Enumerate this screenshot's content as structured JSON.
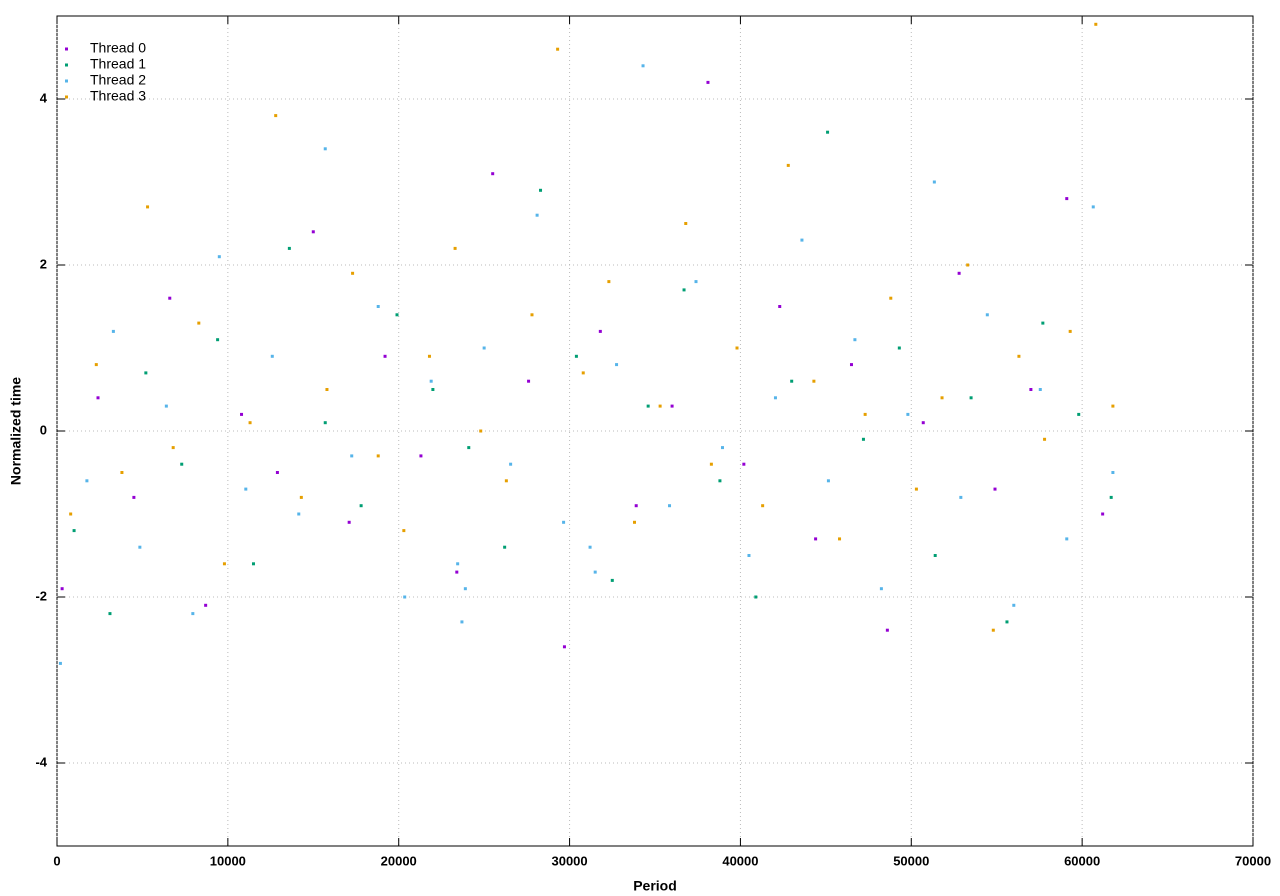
{
  "chart_data": {
    "type": "scatter",
    "xlabel": "Period",
    "ylabel": "Normalized time",
    "xlim": [
      0,
      70000
    ],
    "ylim": [
      -5,
      5
    ],
    "xticks": [
      0,
      10000,
      20000,
      30000,
      40000,
      50000,
      60000,
      70000
    ],
    "yticks": [
      -4,
      -2,
      0,
      2,
      4
    ],
    "grid": true,
    "legend": "top-left",
    "series": [
      {
        "name": "Thread 0",
        "color": "#9400d3",
        "x": [
          300,
          2400,
          4500,
          6600,
          8700,
          10800,
          12900,
          15000,
          17100,
          19200,
          21300,
          23400,
          25500,
          27600,
          29700,
          31800,
          33900,
          36000,
          38100,
          40200,
          42300,
          44400,
          46500,
          48600,
          50700,
          52800,
          54900,
          57000,
          59100,
          61200
        ],
        "values": [
          -1.9,
          0.4,
          -0.8,
          1.6,
          -2.1,
          0.2,
          -0.5,
          2.4,
          -1.1,
          0.9,
          -0.3,
          -1.7,
          3.1,
          0.6,
          -2.6,
          1.2,
          -0.9,
          0.3,
          4.2,
          -0.4,
          1.5,
          -1.3,
          0.8,
          -2.4,
          0.1,
          1.9,
          -0.7,
          0.5,
          2.8,
          -1.0
        ]
      },
      {
        "name": "Thread 1",
        "color": "#009e73",
        "x": [
          1000,
          3100,
          5200,
          7300,
          9400,
          11500,
          13600,
          15700,
          17800,
          19900,
          22000,
          24100,
          26200,
          28300,
          30400,
          32500,
          34600,
          36700,
          38800,
          40900,
          43000,
          45100,
          47200,
          49300,
          51400,
          53500,
          55600,
          57700,
          59800,
          61700
        ],
        "values": [
          -1.2,
          -2.2,
          0.7,
          -0.4,
          1.1,
          -1.6,
          2.2,
          0.1,
          -0.9,
          1.4,
          0.5,
          -0.2,
          -1.4,
          2.9,
          0.9,
          -1.8,
          0.3,
          1.7,
          -0.6,
          -2.0,
          0.6,
          3.6,
          -0.1,
          1.0,
          -1.5,
          0.4,
          -2.3,
          1.3,
          0.2,
          -0.8
        ]
      },
      {
        "name": "Thread 2",
        "color": "#56b4e9",
        "x": [
          200,
          1750,
          3300,
          4850,
          6400,
          7950,
          9500,
          11050,
          12600,
          14150,
          15700,
          17250,
          18800,
          20350,
          21900,
          23450,
          23700,
          23900,
          25000,
          26550,
          28100,
          29650,
          31200,
          31500,
          32750,
          34300,
          35850,
          37400,
          38950,
          40500,
          42050,
          43600,
          45150,
          46700,
          48250,
          49800,
          51350,
          52900,
          54450,
          56000,
          57550,
          59100,
          60650,
          61800
        ],
        "values": [
          -2.8,
          -0.6,
          1.2,
          -1.4,
          0.3,
          -2.2,
          2.1,
          -0.7,
          0.9,
          -1.0,
          3.4,
          -0.3,
          1.5,
          -2.0,
          0.6,
          -1.6,
          -2.3,
          -1.9,
          1.0,
          -0.4,
          2.6,
          -1.1,
          -1.4,
          -1.7,
          0.8,
          4.4,
          -0.9,
          1.8,
          -0.2,
          -1.5,
          0.4,
          2.3,
          -0.6,
          1.1,
          -1.9,
          0.2,
          3.0,
          -0.8,
          1.4,
          -2.1,
          0.5,
          -1.3,
          2.7,
          -0.5
        ]
      },
      {
        "name": "Thread 3",
        "color": "#e69f00",
        "x": [
          800,
          2300,
          3800,
          5300,
          6800,
          8300,
          9800,
          11300,
          12800,
          14300,
          15800,
          17300,
          18800,
          20300,
          21800,
          23300,
          24800,
          26300,
          27800,
          29300,
          30800,
          32300,
          33800,
          35300,
          36800,
          38300,
          39800,
          41300,
          42800,
          44300,
          45800,
          47300,
          48800,
          50300,
          51800,
          53300,
          54800,
          56300,
          57800,
          59300,
          60800,
          61800
        ],
        "values": [
          -1.0,
          0.8,
          -0.5,
          2.7,
          -0.2,
          1.3,
          -1.6,
          0.1,
          3.8,
          -0.8,
          0.5,
          1.9,
          -0.3,
          -1.2,
          0.9,
          2.2,
          0.0,
          -0.6,
          1.4,
          4.6,
          0.7,
          1.8,
          -1.1,
          0.3,
          2.5,
          -0.4,
          1.0,
          -0.9,
          3.2,
          0.6,
          -1.3,
          0.2,
          1.6,
          -0.7,
          0.4,
          2.0,
          -2.4,
          0.9,
          -0.1,
          1.2,
          4.9,
          0.3
        ]
      }
    ]
  }
}
